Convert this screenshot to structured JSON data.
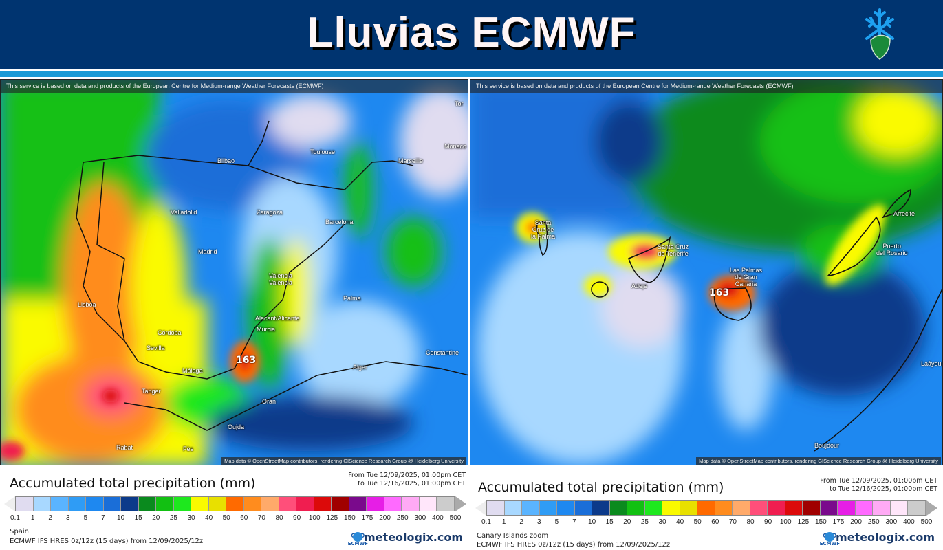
{
  "header": {
    "title": "Lluvias ECMWF",
    "logo_icon": "snowflake-globe-icon"
  },
  "maps": [
    {
      "attribution": "This service is based on data and products of the European Centre for Medium-range Weather Forecasts (ECMWF)",
      "osm": "Map data © OpenStreetMap contributors, rendering GIScience Research Group @ Heidelberg University",
      "max_value": "163",
      "cities": [
        "Bilbao",
        "Toulouse",
        "Marseille",
        "Monaco",
        "Valladolid",
        "Zaragoza",
        "Barcelona",
        "Madrid",
        "Valencia\nValència",
        "Lisboa",
        "Palma",
        "Alacant/Alicante",
        "Murcia",
        "Córdoba",
        "Sevilla",
        "Málaga",
        "Alger",
        "Constantine",
        "Tanger",
        "Oran",
        "Oujda",
        "Rabat",
        "Fès",
        "Tor"
      ]
    },
    {
      "attribution": "This service is based on data and products of the European Centre for Medium-range Weather Forecasts (ECMWF)",
      "osm": "Map data © OpenStreetMap contributors, rendering GIScience Research Group @ Heidelberg University",
      "max_value": "163",
      "cities": [
        "Santa\nCruz de\nla Palma",
        "Santa Cruz\nde Tenerife",
        "Adeje",
        "Las Palmas\nde Gran\nCanaria",
        "Arrecife",
        "Puerto\ndel Rosario",
        "Laâyoune",
        "Boujdour"
      ]
    }
  ],
  "legends": [
    {
      "title": "Accumulated total precipitation (mm)",
      "from": "From Tue 12/09/2025, 01:00pm CET",
      "to": "to Tue 12/16/2025, 01:00pm CET",
      "region": "Spain",
      "model": "ECMWF IFS HRES 0z/12z (15 days) from  12/09/2025/12z"
    },
    {
      "title": "Accumulated total precipitation (mm)",
      "from": "From Tue 12/09/2025, 01:00pm CET",
      "to": "to Tue 12/16/2025, 01:00pm CET",
      "region": "Canary Islands zoom",
      "model": "ECMWF IFS HRES 0z/12z (15 days) from  12/09/2025/12z"
    }
  ],
  "scale": {
    "ticks": [
      "0.1",
      "1",
      "2",
      "3",
      "5",
      "7",
      "10",
      "15",
      "20",
      "25",
      "30",
      "40",
      "50",
      "60",
      "70",
      "80",
      "90",
      "100",
      "125",
      "150",
      "175",
      "200",
      "250",
      "300",
      "400",
      "500"
    ],
    "colors": [
      "#e0dcf0",
      "#a8d8ff",
      "#5ab4ff",
      "#2f9cf5",
      "#1e88f0",
      "#1a6ed8",
      "#0c3a8a",
      "#0a8a1e",
      "#12c012",
      "#1ee81e",
      "#fafa00",
      "#e8e000",
      "#ff6a00",
      "#ff8c1e",
      "#ffaa6a",
      "#ff4f7a",
      "#f01e50",
      "#dc0a0a",
      "#a00000",
      "#7a0a8c",
      "#e61ee6",
      "#ff6aff",
      "#ffaaf5",
      "#ffe6fa",
      "#cccccc"
    ]
  },
  "branding": {
    "ecmwf": "ECMWF",
    "site": "meteologix.com"
  }
}
